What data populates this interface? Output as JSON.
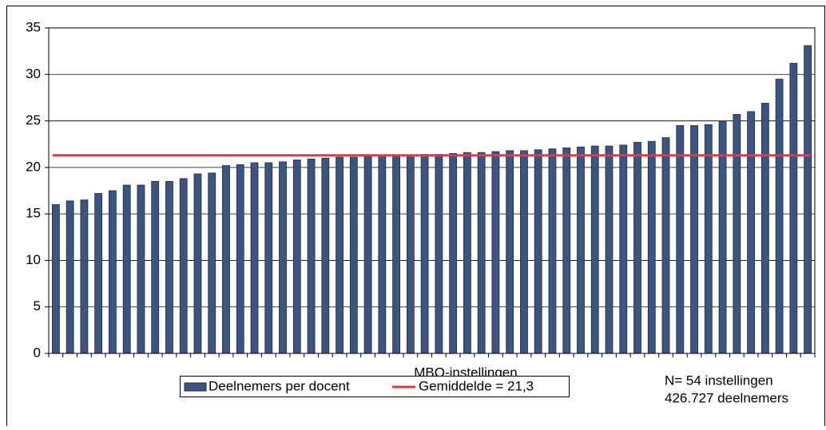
{
  "chart_data": {
    "type": "bar",
    "x_label": "MBO-instellingen",
    "annotations": [
      "N= 54 instellingen",
      "426.727 deelnemers"
    ],
    "categories": [
      null,
      null,
      null,
      null,
      null,
      null,
      null,
      null,
      null,
      null,
      null,
      null,
      null,
      null,
      null,
      null,
      null,
      null,
      null,
      null,
      null,
      null,
      null,
      null,
      null,
      null,
      null,
      null,
      null,
      null,
      null,
      null,
      null,
      null,
      null,
      null,
      null,
      null,
      null,
      null,
      null,
      null,
      null,
      null,
      null,
      null,
      null,
      null,
      null,
      null,
      null,
      null,
      null,
      null
    ],
    "series": [
      {
        "name": "Deelnemers per docent",
        "color": "#3e5480",
        "values": [
          16.0,
          16.4,
          16.5,
          17.2,
          17.5,
          18.1,
          18.1,
          18.5,
          18.5,
          18.8,
          19.3,
          19.4,
          20.2,
          20.3,
          20.5,
          20.5,
          20.6,
          20.8,
          20.9,
          21.0,
          21.1,
          21.1,
          21.2,
          21.3,
          21.3,
          21.3,
          21.4,
          21.4,
          21.5,
          21.6,
          21.6,
          21.7,
          21.8,
          21.8,
          21.9,
          22.0,
          22.1,
          22.2,
          22.3,
          22.3,
          22.4,
          22.7,
          22.8,
          23.2,
          24.5,
          24.5,
          24.6,
          25.0,
          25.7,
          26.0,
          26.9,
          29.5,
          31.2,
          33.1
        ]
      }
    ],
    "average": {
      "name": "Gemiddelde = 21,3",
      "color": "#e8383d",
      "value": 21.3
    },
    "ylim": [
      0,
      35
    ],
    "yticks": [
      0,
      5,
      10,
      15,
      20,
      25,
      30,
      35
    ],
    "grid": true
  }
}
